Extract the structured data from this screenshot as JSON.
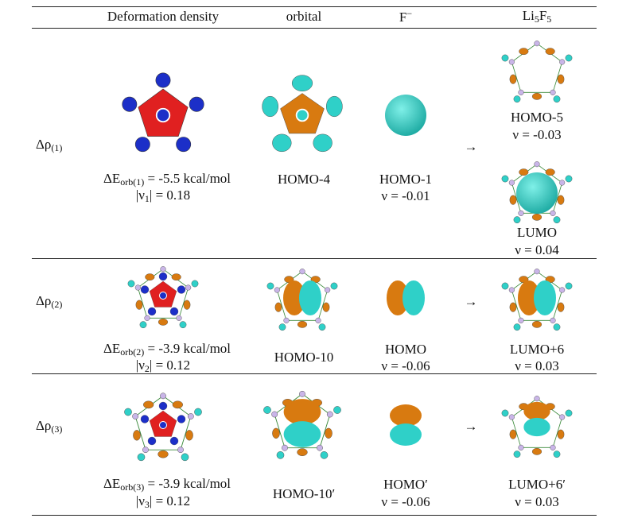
{
  "header": {
    "deformation": "Deformation density",
    "orbital": "orbital",
    "fragment": [
      "F",
      "−"
    ],
    "complex": [
      "Li",
      "5",
      "F",
      "5"
    ]
  },
  "arrow": "→",
  "rows": [
    {
      "label": [
        "Δρ",
        "(1)"
      ],
      "energy": [
        "ΔE",
        "orb(1)",
        "= -5.5 kcal/mol"
      ],
      "nu": [
        "|ν",
        "1",
        "| = 0.18"
      ],
      "orbital": "HOMO-4",
      "fragment": {
        "name": "HOMO-1",
        "nu": "ν = -0.01"
      },
      "complex": [
        {
          "name": "HOMO-5",
          "nu": "ν = -0.03"
        },
        {
          "name": "LUMO",
          "nu": "ν = 0.04"
        }
      ]
    },
    {
      "label": [
        "Δρ",
        "(2)"
      ],
      "energy": [
        "ΔE",
        "orb(2)",
        "= -3.9 kcal/mol"
      ],
      "nu": [
        "|ν",
        "2",
        "| = 0.12"
      ],
      "orbital": "HOMO-10",
      "fragment": {
        "name": "HOMO",
        "nu": "ν = -0.06"
      },
      "complex": [
        {
          "name": "LUMO+6",
          "nu": "ν = 0.03"
        }
      ]
    },
    {
      "label": [
        "Δρ",
        "(3)"
      ],
      "energy": [
        "ΔE",
        "orb(3)",
        "= -3.9 kcal/mol"
      ],
      "nu": [
        "|ν",
        "3",
        "| = 0.12"
      ],
      "orbital": "HOMO-10′",
      "fragment": {
        "name": "HOMO′",
        "nu": "ν = -0.06"
      },
      "complex": [
        {
          "name": "LUMO+6′",
          "nu": "ν = 0.03"
        }
      ]
    }
  ]
}
